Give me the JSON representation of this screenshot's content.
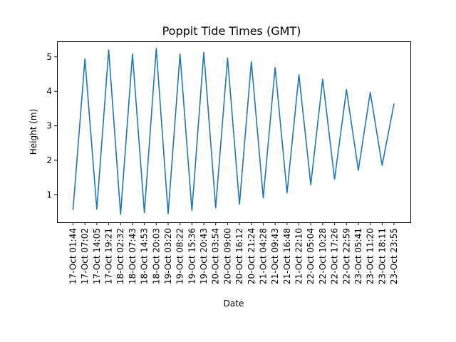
{
  "chart_data": {
    "type": "line",
    "title": "Poppit Tide Times (GMT)",
    "xlabel": "Date",
    "ylabel": "Height (m)",
    "ylim": [
      0.2,
      5.45
    ],
    "yticks": [
      1,
      2,
      3,
      4,
      5
    ],
    "grid": false,
    "categories": [
      "17-Oct 01:44",
      "17-Oct 07:02",
      "17-Oct 14:05",
      "17-Oct 19:21",
      "18-Oct 02:32",
      "18-Oct 07:43",
      "18-Oct 14:53",
      "18-Oct 20:03",
      "19-Oct 03:20",
      "19-Oct 08:22",
      "19-Oct 15:36",
      "19-Oct 20:43",
      "20-Oct 03:54",
      "20-Oct 09:00",
      "20-Oct 16:12",
      "20-Oct 21:24",
      "21-Oct 04:28",
      "21-Oct 09:43",
      "21-Oct 16:48",
      "21-Oct 22:10",
      "22-Oct 05:04",
      "22-Oct 10:28",
      "22-Oct 17:26",
      "22-Oct 22:59",
      "23-Oct 05:41",
      "23-Oct 11:20",
      "23-Oct 18:11",
      "23-Oct 23:55"
    ],
    "series": [
      {
        "color": "#1f77b4",
        "values": [
          0.56,
          4.94,
          0.58,
          5.2,
          0.43,
          5.08,
          0.48,
          5.24,
          0.45,
          5.08,
          0.54,
          5.13,
          0.62,
          4.96,
          0.72,
          4.86,
          0.91,
          4.69,
          1.05,
          4.48,
          1.29,
          4.35,
          1.45,
          4.05,
          1.71,
          3.97,
          1.85,
          3.64
        ]
      }
    ]
  }
}
